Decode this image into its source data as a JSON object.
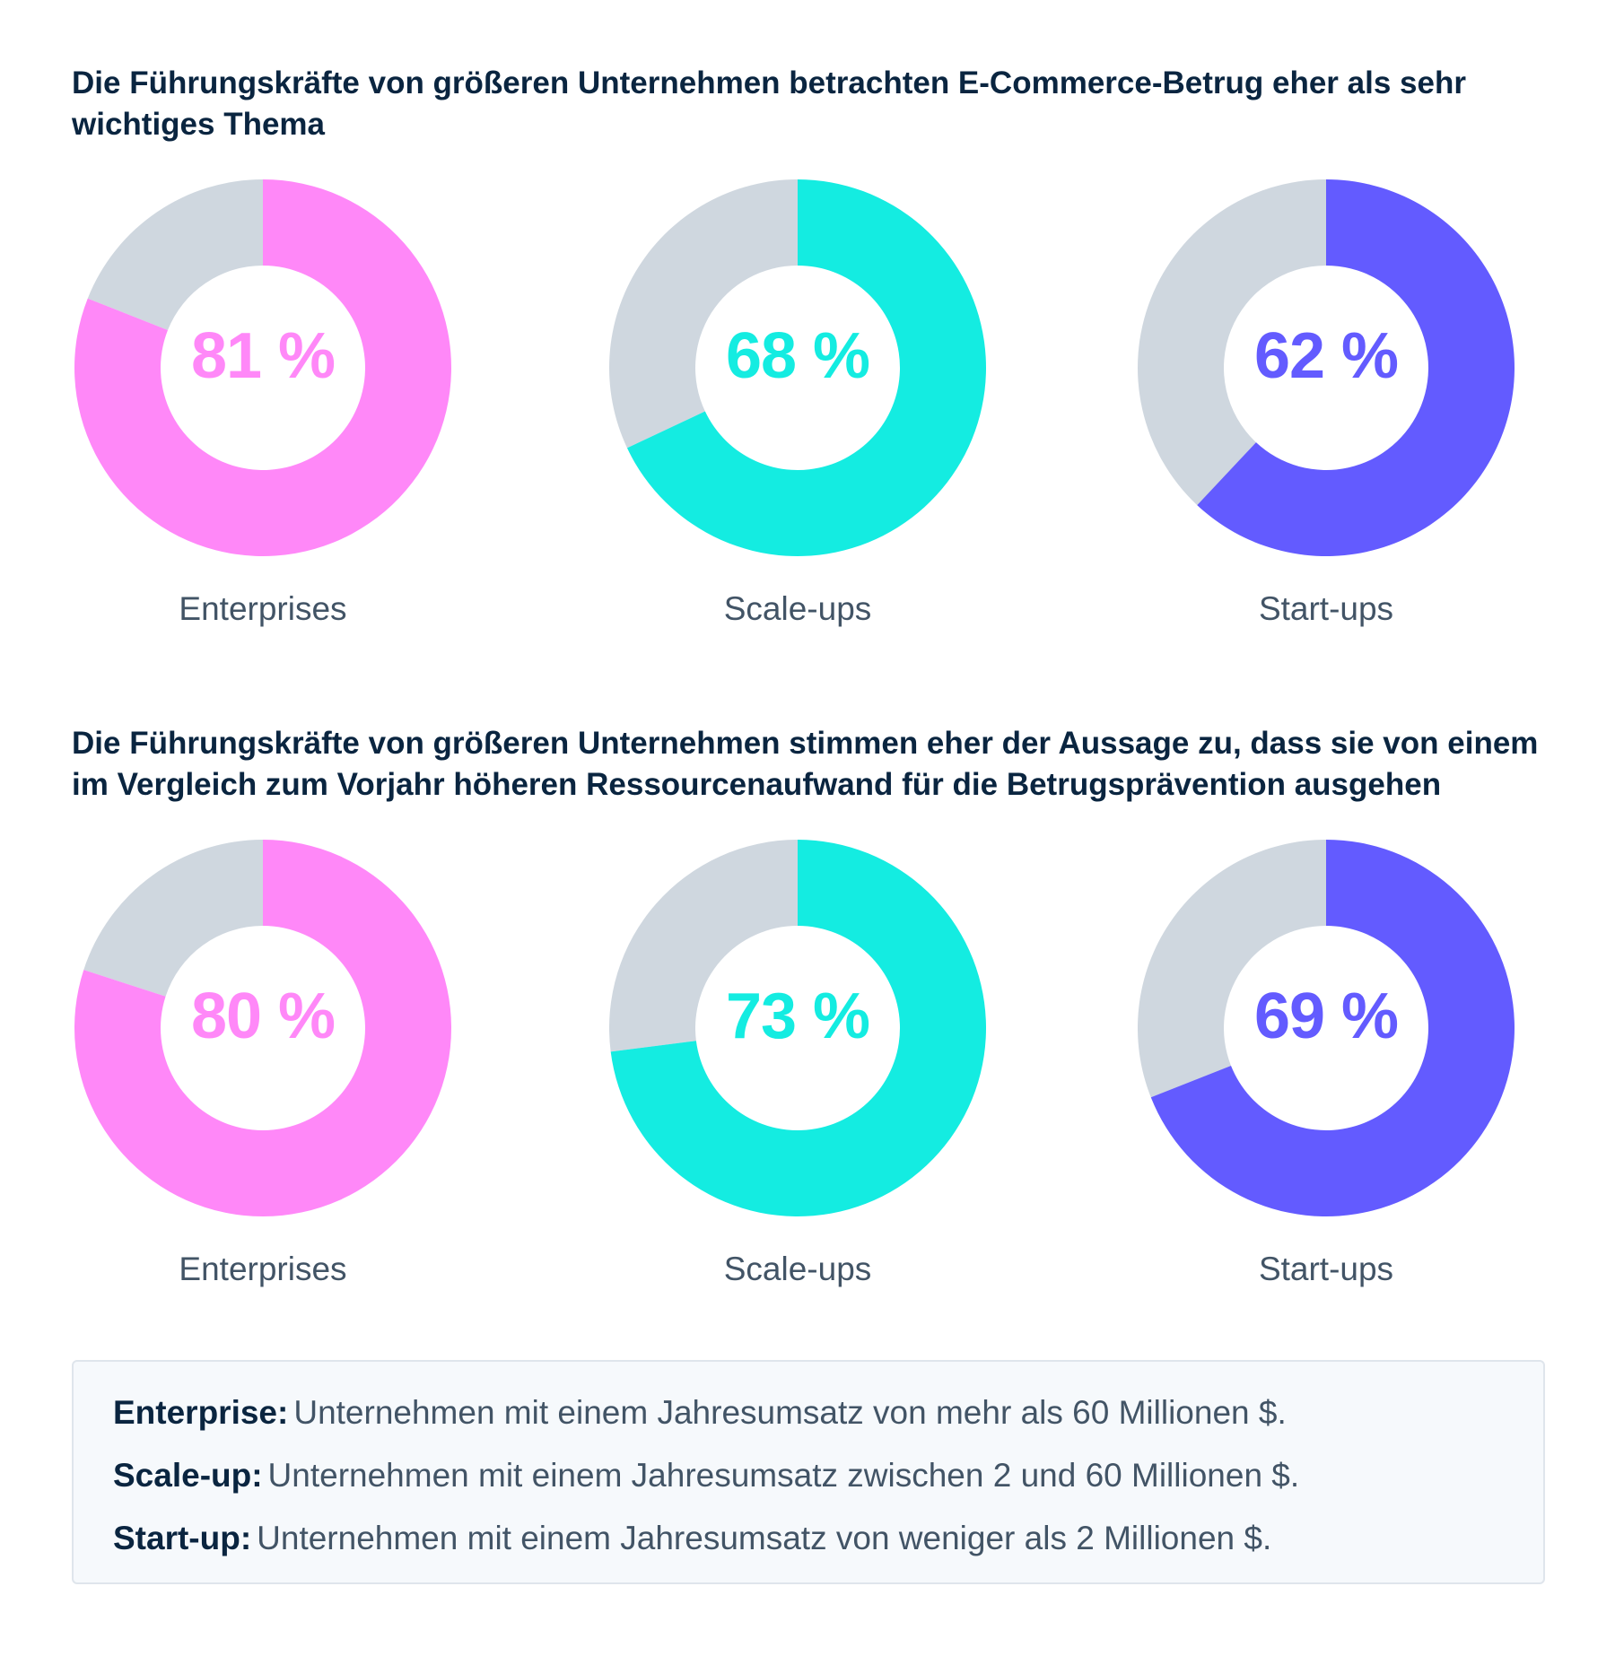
{
  "colors": {
    "enterprise": "#ff88f8",
    "scaleup": "#14ece1",
    "startup": "#635bff",
    "remainder": "#cfd7df",
    "text_dark": "#0a2540",
    "text_muted": "#425466"
  },
  "sections": [
    {
      "title": "Die Führungskräfte von größeren Unternehmen betrachten E-Commerce-Betrug eher als sehr wichtiges Thema"
    },
    {
      "title": "Die Führungskräfte von größeren Unternehmen stimmen eher der Aussage zu, dass sie von einem im Vergleich zum Vorjahr höheren Ressourcenaufwand für die Betrugsprävention ausgehen"
    }
  ],
  "chart_data": [
    {
      "type": "pie",
      "variant": "donut",
      "title": "Die Führungskräfte von größeren Unternehmen betrachten E-Commerce-Betrug eher als sehr wichtiges Thema",
      "categories": [
        "Enterprises",
        "Scale-ups",
        "Start-ups"
      ],
      "values": [
        81,
        68,
        62
      ],
      "labels": [
        "81 %",
        "68 %",
        "62 %"
      ],
      "colors": [
        "#ff88f8",
        "#14ece1",
        "#635bff"
      ],
      "unit": "%"
    },
    {
      "type": "pie",
      "variant": "donut",
      "title": "Die Führungskräfte von größeren Unternehmen stimmen eher der Aussage zu, dass sie von einem im Vergleich zum Vorjahr höheren Ressourcenaufwand für die Betrugsprävention ausgehen",
      "categories": [
        "Enterprises",
        "Scale-ups",
        "Start-ups"
      ],
      "values": [
        80,
        73,
        69
      ],
      "labels": [
        "80 %",
        "73 %",
        "69 %"
      ],
      "colors": [
        "#ff88f8",
        "#14ece1",
        "#635bff"
      ],
      "unit": "%"
    }
  ],
  "legend": [
    {
      "term": "Enterprise:",
      "definition": "Unternehmen mit einem Jahresumsatz von mehr als 60 Millionen $."
    },
    {
      "term": "Scale-up:",
      "definition": "Unternehmen mit einem Jahresumsatz zwischen 2 und 60 Millionen $."
    },
    {
      "term": "Start-up:",
      "definition": "Unternehmen mit einem Jahresumsatz von weniger als 2 Millionen $."
    }
  ]
}
